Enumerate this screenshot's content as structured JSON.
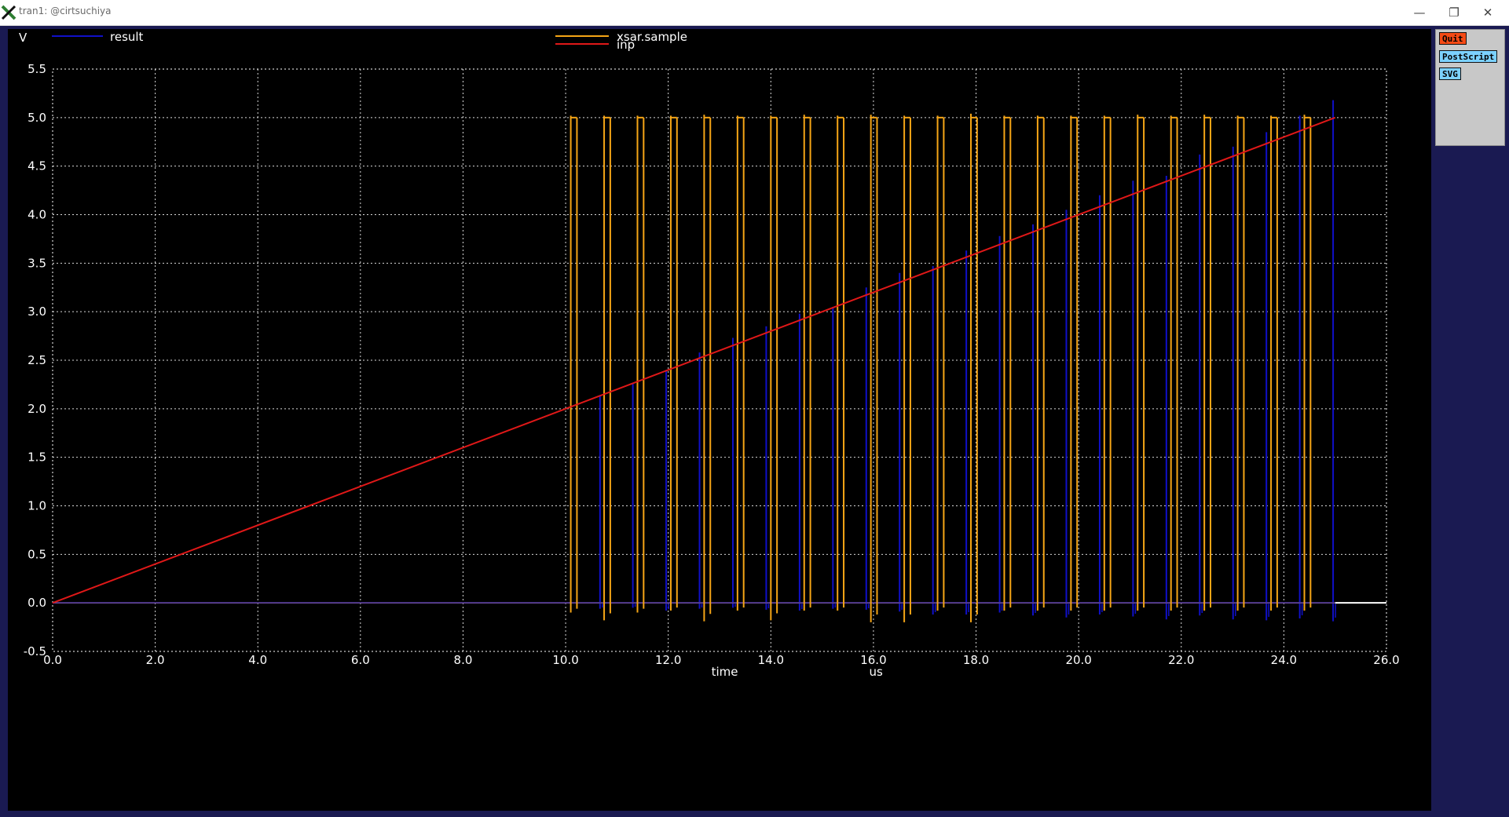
{
  "window": {
    "title": "tran1: @cirtsuchiya",
    "controls": {
      "minimize": "—",
      "restore": "❐",
      "close": "✕"
    }
  },
  "toolbar": {
    "quit_label": "Quit",
    "postscript_label": "PostScript",
    "svg_label": "SVG"
  },
  "colors": {
    "plot_bg": "#000000",
    "grid": "#ffffff",
    "result": "#1010c8",
    "xsar_sample": "#f5a516",
    "inp": "#e01818",
    "window_bg": "#1a1a52",
    "quit_button": "#f54a15",
    "export_button": "#7cd1ff"
  },
  "chart_data": {
    "type": "line",
    "y_unit_label": "V",
    "xlabel": "time",
    "x_unit_label": "us",
    "xlim": [
      0,
      26
    ],
    "ylim": [
      -0.5,
      5.5
    ],
    "x_ticks": [
      "0.0",
      "2.0",
      "4.0",
      "6.0",
      "8.0",
      "10.0",
      "12.0",
      "14.0",
      "16.0",
      "18.0",
      "20.0",
      "22.0",
      "24.0",
      "26.0"
    ],
    "y_ticks": [
      "-0.5",
      "0.0",
      "0.5",
      "1.0",
      "1.5",
      "2.0",
      "2.5",
      "3.0",
      "3.5",
      "4.0",
      "4.5",
      "5.0",
      "5.5"
    ],
    "grid": true,
    "series": [
      {
        "name": "result",
        "color": "#1010c8",
        "baseline": 0.0,
        "pulses": [
          {
            "x": 10.67,
            "peak": 2.13,
            "dip": -0.06
          },
          {
            "x": 11.31,
            "peak": 2.26,
            "dip": -0.05
          },
          {
            "x": 11.96,
            "peak": 2.4,
            "dip": -0.08
          },
          {
            "x": 12.61,
            "peak": 2.58,
            "dip": -0.06
          },
          {
            "x": 13.26,
            "peak": 2.73,
            "dip": -0.05
          },
          {
            "x": 13.91,
            "peak": 2.85,
            "dip": -0.07
          },
          {
            "x": 14.56,
            "peak": 2.98,
            "dip": -0.08
          },
          {
            "x": 15.21,
            "peak": 3.05,
            "dip": -0.06
          },
          {
            "x": 15.86,
            "peak": 3.25,
            "dip": -0.07
          },
          {
            "x": 16.51,
            "peak": 3.4,
            "dip": -0.09
          },
          {
            "x": 17.16,
            "peak": 3.47,
            "dip": -0.12
          },
          {
            "x": 17.81,
            "peak": 3.63,
            "dip": -0.12
          },
          {
            "x": 18.46,
            "peak": 3.78,
            "dip": -0.1
          },
          {
            "x": 19.11,
            "peak": 3.9,
            "dip": -0.13
          },
          {
            "x": 19.76,
            "peak": 4.05,
            "dip": -0.15
          },
          {
            "x": 20.41,
            "peak": 4.2,
            "dip": -0.12
          },
          {
            "x": 21.06,
            "peak": 4.35,
            "dip": -0.14
          },
          {
            "x": 21.71,
            "peak": 4.4,
            "dip": -0.17
          },
          {
            "x": 22.36,
            "peak": 4.62,
            "dip": -0.13
          },
          {
            "x": 23.01,
            "peak": 4.7,
            "dip": -0.17
          },
          {
            "x": 23.66,
            "peak": 4.85,
            "dip": -0.18
          },
          {
            "x": 24.31,
            "peak": 5.02,
            "dip": -0.16
          },
          {
            "x": 24.96,
            "peak": 5.18,
            "dip": -0.19
          }
        ]
      },
      {
        "name": "xsar.sample",
        "color": "#f5a516",
        "low": 0.0,
        "high": 5.0,
        "pulse_width_us": 0.12,
        "pulses": [
          {
            "x": 10.1,
            "peak": 5.02,
            "dip": -0.1
          },
          {
            "x": 10.75,
            "peak": 5.02,
            "dip": -0.18
          },
          {
            "x": 11.4,
            "peak": 5.02,
            "dip": -0.1
          },
          {
            "x": 12.05,
            "peak": 5.02,
            "dip": -0.08
          },
          {
            "x": 12.7,
            "peak": 5.03,
            "dip": -0.19
          },
          {
            "x": 13.35,
            "peak": 5.02,
            "dip": -0.08
          },
          {
            "x": 14.0,
            "peak": 5.02,
            "dip": -0.18
          },
          {
            "x": 14.65,
            "peak": 5.03,
            "dip": -0.08
          },
          {
            "x": 15.3,
            "peak": 5.02,
            "dip": -0.08
          },
          {
            "x": 15.95,
            "peak": 5.03,
            "dip": -0.2
          },
          {
            "x": 16.6,
            "peak": 5.02,
            "dip": -0.2
          },
          {
            "x": 17.25,
            "peak": 5.02,
            "dip": -0.08
          },
          {
            "x": 17.9,
            "peak": 5.04,
            "dip": -0.2
          },
          {
            "x": 18.55,
            "peak": 5.02,
            "dip": -0.08
          },
          {
            "x": 19.2,
            "peak": 5.02,
            "dip": -0.08
          },
          {
            "x": 19.85,
            "peak": 5.02,
            "dip": -0.08
          },
          {
            "x": 20.5,
            "peak": 5.02,
            "dip": -0.08
          },
          {
            "x": 21.15,
            "peak": 5.03,
            "dip": -0.08
          },
          {
            "x": 21.8,
            "peak": 5.02,
            "dip": -0.08
          },
          {
            "x": 22.45,
            "peak": 5.03,
            "dip": -0.08
          },
          {
            "x": 23.1,
            "peak": 5.02,
            "dip": -0.08
          },
          {
            "x": 23.75,
            "peak": 5.02,
            "dip": -0.08
          },
          {
            "x": 24.4,
            "peak": 5.03,
            "dip": -0.08
          }
        ]
      },
      {
        "name": "inp",
        "color": "#e01818",
        "x": [
          0,
          25
        ],
        "y": [
          0,
          5
        ]
      }
    ]
  }
}
